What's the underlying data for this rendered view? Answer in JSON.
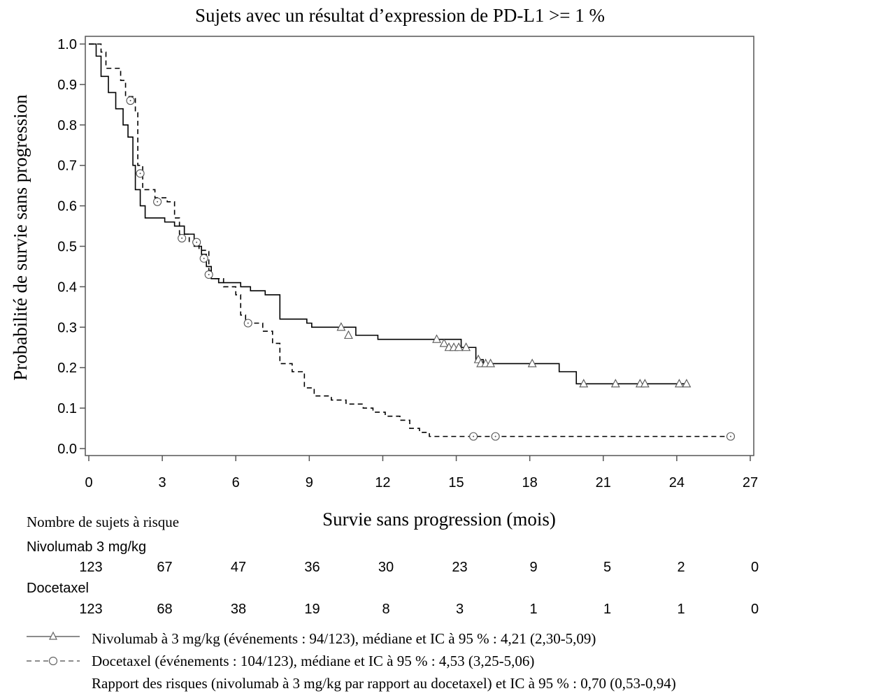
{
  "chart_data": {
    "type": "line",
    "title": "Sujets avec un résultat d’expression de PD-L1 >=  1 %",
    "xlabel": "Survie sans progression (mois)",
    "ylabel": "Probabilité de survie sans progression",
    "xlim": [
      0,
      27
    ],
    "ylim": [
      0,
      1.0
    ],
    "x_ticks": [
      "0",
      "3",
      "6",
      "9",
      "12",
      "15",
      "18",
      "21",
      "24",
      "27"
    ],
    "y_ticks": [
      "0.0",
      "0.1",
      "0.2",
      "0.3",
      "0.4",
      "0.5",
      "0.6",
      "0.7",
      "0.8",
      "0.9",
      "1.0"
    ],
    "grid": false,
    "series": [
      {
        "name": "Nivolumab à 3 mg/kg",
        "style": "solid",
        "censor_marker": "triangle",
        "color": "#000000",
        "steps": [
          [
            0,
            1.0
          ],
          [
            0.3,
            0.97
          ],
          [
            0.5,
            0.92
          ],
          [
            0.8,
            0.88
          ],
          [
            1.1,
            0.84
          ],
          [
            1.4,
            0.8
          ],
          [
            1.6,
            0.77
          ],
          [
            1.8,
            0.7
          ],
          [
            1.9,
            0.64
          ],
          [
            2.1,
            0.6
          ],
          [
            2.3,
            0.57
          ],
          [
            3.1,
            0.56
          ],
          [
            3.5,
            0.55
          ],
          [
            3.9,
            0.53
          ],
          [
            4.3,
            0.5
          ],
          [
            4.6,
            0.48
          ],
          [
            4.8,
            0.45
          ],
          [
            5.0,
            0.42
          ],
          [
            5.3,
            0.41
          ],
          [
            6.2,
            0.4
          ],
          [
            6.6,
            0.39
          ],
          [
            7.2,
            0.38
          ],
          [
            7.8,
            0.32
          ],
          [
            8.9,
            0.31
          ],
          [
            9.1,
            0.3
          ],
          [
            10.9,
            0.28
          ],
          [
            11.8,
            0.27
          ],
          [
            15.2,
            0.25
          ],
          [
            15.8,
            0.22
          ],
          [
            16.1,
            0.21
          ],
          [
            19.2,
            0.19
          ],
          [
            19.9,
            0.16
          ],
          [
            24.5,
            0.16
          ]
        ],
        "censors": [
          [
            10.3,
            0.3
          ],
          [
            10.6,
            0.28
          ],
          [
            14.2,
            0.27
          ],
          [
            14.5,
            0.26
          ],
          [
            14.7,
            0.25
          ],
          [
            14.9,
            0.25
          ],
          [
            15.1,
            0.25
          ],
          [
            15.4,
            0.25
          ],
          [
            15.9,
            0.22
          ],
          [
            16.0,
            0.21
          ],
          [
            16.2,
            0.21
          ],
          [
            16.4,
            0.21
          ],
          [
            18.1,
            0.21
          ],
          [
            20.2,
            0.16
          ],
          [
            21.5,
            0.16
          ],
          [
            22.5,
            0.16
          ],
          [
            22.7,
            0.16
          ],
          [
            24.1,
            0.16
          ],
          [
            24.4,
            0.16
          ]
        ]
      },
      {
        "name": "Docetaxel",
        "style": "dashed",
        "censor_marker": "circle",
        "color": "#000000",
        "steps": [
          [
            0,
            1.0
          ],
          [
            0.5,
            0.98
          ],
          [
            0.7,
            0.94
          ],
          [
            1.3,
            0.91
          ],
          [
            1.5,
            0.87
          ],
          [
            1.9,
            0.83
          ],
          [
            2.0,
            0.7
          ],
          [
            2.2,
            0.64
          ],
          [
            2.7,
            0.62
          ],
          [
            3.2,
            0.61
          ],
          [
            3.5,
            0.57
          ],
          [
            3.7,
            0.53
          ],
          [
            4.1,
            0.51
          ],
          [
            4.5,
            0.49
          ],
          [
            4.9,
            0.44
          ],
          [
            5.0,
            0.42
          ],
          [
            5.5,
            0.4
          ],
          [
            6.0,
            0.38
          ],
          [
            6.2,
            0.33
          ],
          [
            6.4,
            0.31
          ],
          [
            7.1,
            0.29
          ],
          [
            7.5,
            0.26
          ],
          [
            7.8,
            0.21
          ],
          [
            8.3,
            0.19
          ],
          [
            8.8,
            0.15
          ],
          [
            9.2,
            0.13
          ],
          [
            9.9,
            0.12
          ],
          [
            10.5,
            0.11
          ],
          [
            11.2,
            0.1
          ],
          [
            11.6,
            0.09
          ],
          [
            12.1,
            0.08
          ],
          [
            12.7,
            0.07
          ],
          [
            13.1,
            0.05
          ],
          [
            13.5,
            0.04
          ],
          [
            13.9,
            0.03
          ],
          [
            26.3,
            0.03
          ]
        ],
        "censors": [
          [
            1.7,
            0.86
          ],
          [
            2.1,
            0.68
          ],
          [
            2.8,
            0.61
          ],
          [
            3.8,
            0.52
          ],
          [
            4.4,
            0.51
          ],
          [
            4.7,
            0.47
          ],
          [
            4.9,
            0.43
          ],
          [
            6.5,
            0.31
          ],
          [
            15.7,
            0.03
          ],
          [
            16.6,
            0.03
          ],
          [
            26.2,
            0.03
          ]
        ]
      }
    ]
  },
  "risk_table": {
    "title": "Nombre de sujets à risque",
    "rows": [
      {
        "label": "Nivolumab 3 mg/kg",
        "values": [
          "123",
          "67",
          "47",
          "36",
          "30",
          "23",
          "9",
          "5",
          "2",
          "0"
        ]
      },
      {
        "label": "Docetaxel",
        "values": [
          "123",
          "68",
          "38",
          "19",
          "8",
          "3",
          "1",
          "1",
          "1",
          "0"
        ]
      }
    ]
  },
  "legend": {
    "nivolumab": "Nivolumab à 3 mg/kg (événements : 94/123), médiane et IC à 95 % : 4,21 (2,30-5,09)",
    "docetaxel": "Docetaxel (événements : 104/123), médiane et IC à 95 % : 4,53 (3,25-5,06)",
    "hazard_ratio": "Rapport des risques (nivolumab à 3 mg/kg par rapport au docetaxel) et IC à 95 % : 0,70 (0,53-0,94)"
  }
}
